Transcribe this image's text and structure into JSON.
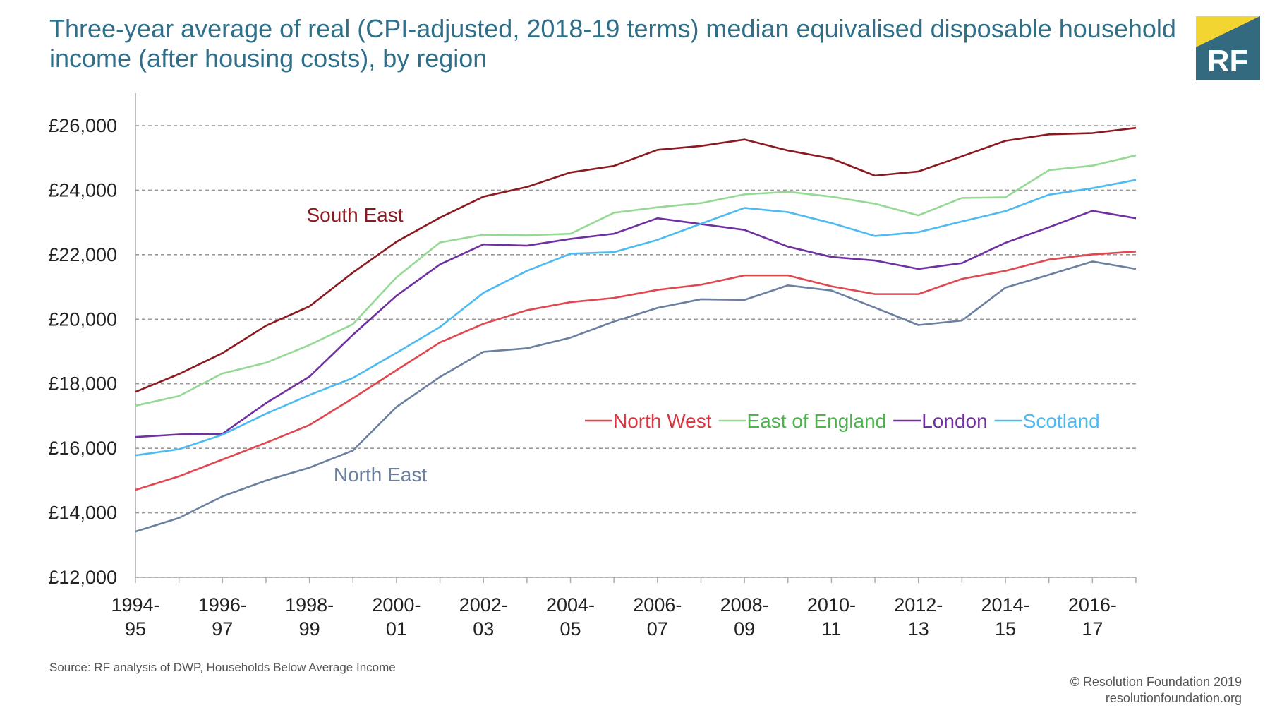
{
  "header": {
    "title_line1": "Three-year average of real (CPI-adjusted, 2018-19 terms) median equivalised disposable household",
    "title_line2": "income (after housing costs), by region",
    "logo_text": "RF"
  },
  "footer": {
    "source": "Source: RF analysis of DWP, Households Below Average Income",
    "copyright": "© Resolution Foundation 2019",
    "website": "resolutionfoundation.org"
  },
  "chart_data": {
    "type": "line",
    "title": "Three-year average of real (CPI-adjusted, 2018-19 terms) median equivalised disposable household income (after housing costs), by region",
    "xlabel": "",
    "ylabel": "",
    "ylim": [
      12000,
      26000
    ],
    "yticks": [
      12000,
      14000,
      16000,
      18000,
      20000,
      22000,
      24000,
      26000
    ],
    "ytick_labels": [
      "£12,000",
      "£14,000",
      "£16,000",
      "£18,000",
      "£20,000",
      "£22,000",
      "£24,000",
      "£26,000"
    ],
    "grid": "horizontal dashed",
    "x": [
      "1994-95",
      "1995-96",
      "1996-97",
      "1997-98",
      "1998-99",
      "1999-00",
      "2000-01",
      "2001-02",
      "2002-03",
      "2003-04",
      "2004-05",
      "2005-06",
      "2006-07",
      "2007-08",
      "2008-09",
      "2009-10",
      "2010-11",
      "2011-12",
      "2012-13",
      "2013-14",
      "2014-15",
      "2015-16",
      "2016-17",
      "2017-18"
    ],
    "xtick_labels": [
      [
        "1994-",
        "95"
      ],
      [
        "1996-",
        "97"
      ],
      [
        "1998-",
        "99"
      ],
      [
        "2000-",
        "01"
      ],
      [
        "2002-",
        "03"
      ],
      [
        "2004-",
        "05"
      ],
      [
        "2006-",
        "07"
      ],
      [
        "2008-",
        "09"
      ],
      [
        "2010-",
        "11"
      ],
      [
        "2012-",
        "13"
      ],
      [
        "2014-",
        "15"
      ],
      [
        "2016-",
        "17"
      ]
    ],
    "legend_placement": "inline, center-right",
    "series": [
      {
        "name": "South East",
        "color": "#8b1a20",
        "label_color": "#8b1a20",
        "values": [
          17750,
          18300,
          18950,
          19800,
          20400,
          21450,
          22400,
          23150,
          23800,
          24100,
          24550,
          24750,
          25250,
          25370,
          25570,
          25230,
          24980,
          24450,
          24580,
          25050,
          25530,
          25730,
          25770,
          25930
        ]
      },
      {
        "name": "East of England",
        "color": "#95d995",
        "label_color": "#4db34d",
        "values": [
          17320,
          17620,
          18320,
          18650,
          19200,
          19850,
          21300,
          22380,
          22620,
          22600,
          22650,
          23300,
          23470,
          23600,
          23870,
          23950,
          23800,
          23580,
          23220,
          23760,
          23780,
          24620,
          24760,
          25080
        ]
      },
      {
        "name": "London",
        "color": "#7030a0",
        "label_color": "#7030a0",
        "values": [
          16350,
          16430,
          16450,
          17400,
          18220,
          19520,
          20730,
          21700,
          22320,
          22280,
          22490,
          22650,
          23130,
          22950,
          22770,
          22250,
          21930,
          21820,
          21560,
          21740,
          22370,
          22850,
          23360,
          23130
        ]
      },
      {
        "name": "Scotland",
        "color": "#4dbaf2",
        "label_color": "#4dbaf2",
        "values": [
          15780,
          15970,
          16420,
          17070,
          17650,
          18180,
          18960,
          19760,
          20820,
          21500,
          22030,
          22080,
          22460,
          22960,
          23450,
          23320,
          22980,
          22580,
          22700,
          23030,
          23350,
          23860,
          24060,
          24320
        ]
      },
      {
        "name": "North West",
        "color": "#e0474f",
        "label_color": "#d9343f",
        "values": [
          14710,
          15130,
          15650,
          16170,
          16720,
          17550,
          18420,
          19280,
          19860,
          20280,
          20530,
          20660,
          20910,
          21070,
          21360,
          21360,
          21020,
          20780,
          20780,
          21250,
          21500,
          21850,
          22010,
          22100
        ]
      },
      {
        "name": "North East",
        "color": "#6b7fa0",
        "label_color": "#6b7fa0",
        "values": [
          13420,
          13840,
          14510,
          15000,
          15400,
          15930,
          17280,
          18210,
          18990,
          19100,
          19430,
          19930,
          20350,
          20620,
          20600,
          21050,
          20890,
          20360,
          19820,
          19960,
          20980,
          21380,
          21790,
          21560
        ]
      }
    ],
    "legend": [
      "North West",
      "East of England",
      "London",
      "Scotland"
    ],
    "direct_labels": [
      "South East",
      "North East"
    ]
  }
}
